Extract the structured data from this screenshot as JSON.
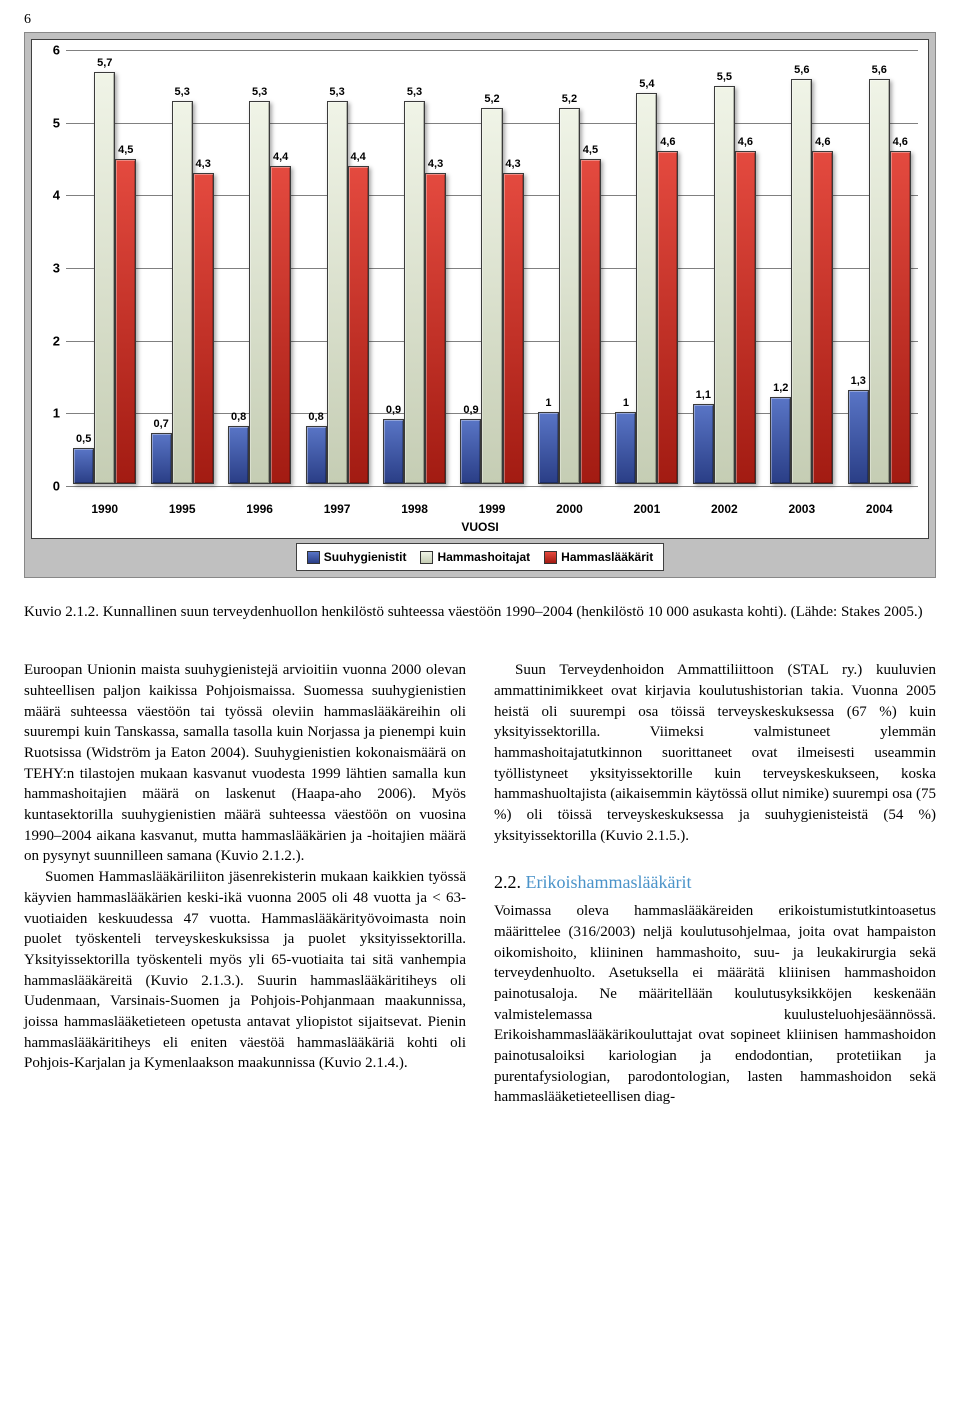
{
  "page_number": "6",
  "chart": {
    "type": "bar",
    "x_axis_label": "VUOSI",
    "categories": [
      "1990",
      "1995",
      "1996",
      "1997",
      "1998",
      "1999",
      "2000",
      "2001",
      "2002",
      "2003",
      "2004"
    ],
    "ylim": [
      0,
      6
    ],
    "ytick_step": 1,
    "grid_color": "#808080",
    "background_color": "#ffffff",
    "frame_color": "#c0c0c0",
    "series": [
      {
        "name": "Suuhygienistit",
        "color_class": "blue",
        "values": [
          0.5,
          0.7,
          0.8,
          0.8,
          0.9,
          0.9,
          1.0,
          1.0,
          1.1,
          1.2,
          1.3
        ]
      },
      {
        "name": "Hammashoitajat",
        "color_class": "grey",
        "values": [
          5.7,
          5.3,
          5.3,
          5.3,
          5.3,
          5.2,
          5.2,
          5.4,
          5.5,
          5.6,
          5.6
        ]
      },
      {
        "name": "Hammaslääkärit",
        "color_class": "red",
        "values": [
          4.5,
          4.3,
          4.4,
          4.4,
          4.3,
          4.3,
          4.5,
          4.6,
          4.6,
          4.6,
          4.6
        ]
      }
    ],
    "label_fontsize": 12,
    "value_label_fontsize": 11
  },
  "caption": "Kuvio 2.1.2. Kunnallinen suun terveydenhuollon henkilöstö suhteessa väestöön 1990–2004 (henkilöstö 10 000 asukasta kohti). (Lähde: Stakes 2005.)",
  "body": {
    "p1": "Euroopan Unionin maista suuhygienistejä arvioitiin vuonna 2000 olevan suhteellisen paljon kaikissa Pohjoismaissa. Suomessa suuhygienistien määrä suhteessa väestöön tai työssä oleviin hammaslääkäreihin oli suurempi kuin Tanskassa, samalla tasolla kuin Norjassa ja pienempi kuin Ruotsissa (Widström ja Eaton 2004). Suuhygienistien kokonaismäärä on TEHY:n tilastojen mukaan kasvanut vuodesta 1999 lähtien samalla kun hammashoitajien määrä on laskenut (Haapa-aho 2006). Myös kuntasektorilla suuhygienistien määrä suhteessa väestöön on vuosina 1990–2004 aikana kasvanut, mutta hammaslääkärien ja -hoitajien määrä on pysynyt suunnilleen samana (Kuvio 2.1.2.).",
    "p2": "Suomen Hammaslääkäriliiton jäsenrekisterin mukaan kaikkien työssä käyvien hammaslääkärien keski-ikä vuonna 2005 oli 48 vuotta ja < 63-vuotiaiden keskuudessa 47 vuotta. Hammaslääkärityövoimasta noin puolet työskenteli terveyskeskuksissa ja puolet yksityissektorilla. Yksityissektorilla työskenteli myös yli 65-vuotiaita tai sitä vanhempia hammaslääkäreitä (Kuvio 2.1.3.).  Suurin hammaslääkäritiheys oli Uudenmaan, Varsinais-Suomen ja Pohjois-Pohjanmaan maakunnissa, joissa hammaslääketieteen opetusta antavat yliopistot sijaitsevat. Pienin hammaslääkäritiheys eli eniten väestöä hammaslääkäriä kohti oli Pohjois-Karjalan ja Kymenlaakson maakunnissa (Kuvio 2.1.4.).",
    "p3": "Suun Terveydenhoidon Ammattiliittoon (STAL ry.) kuuluvien ammattinimikkeet ovat kirjavia koulutushistorian takia. Vuonna 2005 heistä oli suurempi osa töissä terveyskeskuksessa (67 %) kuin yksityissektorilla. Viimeksi valmistuneet ylemmän hammashoitajatutkinnon suorittaneet ovat ilmeisesti useammin työllistyneet yksityissektorille kuin terveyskeskukseen, koska hammashuoltajista (aikaisemmin käytössä ollut nimike) suurempi osa (75 %) oli töissä terveyskeskuksessa ja suuhygienisteistä (54 %) yksityissektorilla (Kuvio 2.1.5.)."
  },
  "section": {
    "number": "2.2.",
    "title": "Erikoishammaslääkärit",
    "text": "Voimassa oleva hammaslääkäreiden erikoistumistutkintoasetus määrittelee (316/2003) neljä koulutusohjelmaa, joita ovat hampaiston oikomishoito, kliininen hammashoito, suu- ja leukakirurgia sekä terveydenhuolto. Asetuksella ei määrätä kliinisen hammashoidon painotusaloja. Ne määritellään koulutusyksikköjen keskenään valmistelemassa kuulusteluohjesäännössä. Erikoishammaslääkärikouluttajat ovat sopineet kliinisen hammashoidon painotusaloiksi kariologian ja endodontian, protetiikan ja purentafysiologian, parodontologian, lasten hammashoidon sekä hammaslääketieteellisen diag-"
  }
}
